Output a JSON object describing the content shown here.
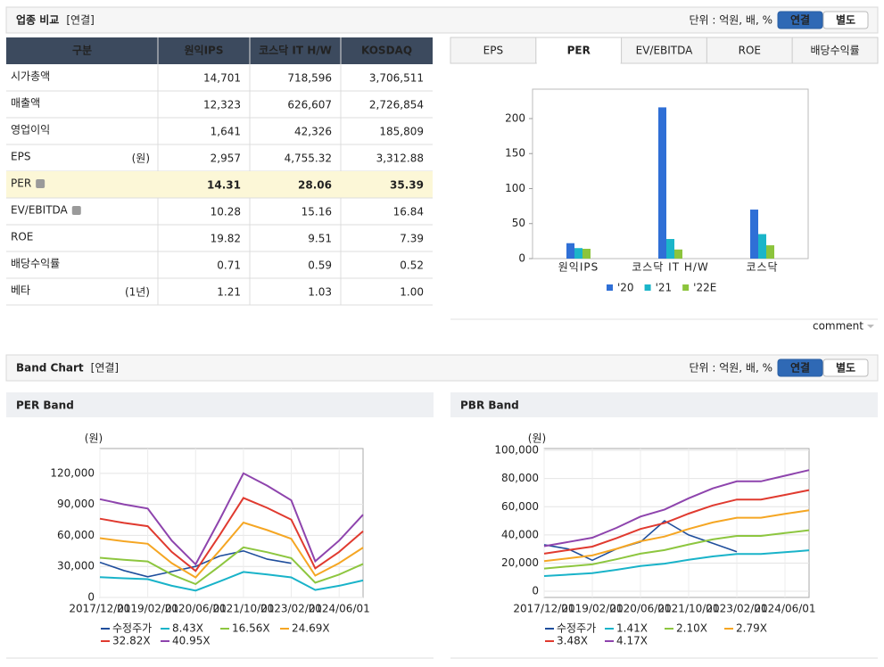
{
  "section1": {
    "title": "업종 비교",
    "tag": "[연결]",
    "unit": "단위 : 억원, 배, %",
    "buttons": [
      "연결",
      "별도"
    ],
    "selected_button": 0
  },
  "table": {
    "header": [
      "구분",
      "원익IPS",
      "코스닥 IT H/W",
      "KOSDAQ"
    ],
    "highlight_row": 4,
    "rows": [
      {
        "label": "시가총액",
        "cells": [
          "14,701",
          "718,596",
          "3,706,511"
        ]
      },
      {
        "label": "매출액",
        "cells": [
          "12,323",
          "626,607",
          "2,726,854"
        ]
      },
      {
        "label": "영업이익",
        "cells": [
          "1,641",
          "42,326",
          "185,809"
        ]
      },
      {
        "label": "EPS",
        "unit": "(원)",
        "cells": [
          "2,957",
          "4,755.32",
          "3,312.88"
        ]
      },
      {
        "label": "PER",
        "help": true,
        "cells": [
          "14.31",
          "28.06",
          "35.39"
        ]
      },
      {
        "label": "EV/EBITDA",
        "help": true,
        "cells": [
          "10.28",
          "15.16",
          "16.84"
        ]
      },
      {
        "label": "ROE",
        "cells": [
          "19.82",
          "9.51",
          "7.39"
        ]
      },
      {
        "label": "배당수익률",
        "cells": [
          "0.71",
          "0.59",
          "0.52"
        ]
      },
      {
        "label": "베타",
        "unit": "(1년)",
        "cells": [
          "1.21",
          "1.03",
          "1.00"
        ]
      }
    ]
  },
  "tabs": [
    "EPS",
    "PER",
    "EV/EBITDA",
    "ROE",
    "배당수익률"
  ],
  "selected_tab": 1,
  "comment": "comment",
  "section2": {
    "title": "Band Chart",
    "tag": "[연결]",
    "unit": "단위 : 억원, 배, %",
    "buttons": [
      "연결",
      "별도"
    ],
    "selected_button": 0
  },
  "chart_data": [
    {
      "type": "bar",
      "categories": [
        "원익IPS",
        "코스닥 IT H/W",
        "코스닥"
      ],
      "series": [
        {
          "name": "'20",
          "color": "#2f6fd6",
          "values": [
            22,
            216,
            70
          ]
        },
        {
          "name": "'21",
          "color": "#1bb5c9",
          "values": [
            15,
            28,
            35
          ]
        },
        {
          "name": "'22E",
          "color": "#8cc43c",
          "values": [
            14,
            13,
            19
          ]
        }
      ],
      "ylim": [
        0,
        242
      ],
      "yticks": [
        0,
        50,
        100,
        150,
        200
      ]
    },
    {
      "type": "line",
      "title": "PER Band",
      "y_label": "(원)",
      "categories": [
        "2017/12/01",
        null,
        "2019/02/01",
        null,
        "2020/06/01",
        null,
        "2021/10/01",
        null,
        "2023/02/01",
        null,
        "2024/06/01",
        null
      ],
      "ylim": [
        0,
        144000
      ],
      "yticks": [
        0,
        {
          "value": 30000,
          "label": "30,000"
        },
        {
          "value": 60000,
          "label": "60,000"
        },
        {
          "value": 90000,
          "label": "90,000"
        },
        {
          "value": 120000,
          "label": "120,000"
        }
      ],
      "series": [
        {
          "name": "수정주가",
          "color": "#1f4e9c",
          "values": [
            34000,
            26000,
            20000,
            25000,
            30000,
            40000,
            45000,
            37000,
            33000,
            null,
            null,
            null
          ]
        },
        {
          "name": "8.43X",
          "color": "#19b3c9",
          "values": [
            19600,
            18500,
            17700,
            11300,
            6600,
            15400,
            24700,
            22200,
            19400,
            7200,
            11300,
            16500
          ]
        },
        {
          "name": "16.56X",
          "color": "#8dc63f",
          "values": [
            38400,
            36400,
            34800,
            22200,
            12900,
            30300,
            48500,
            43700,
            38000,
            14200,
            22200,
            32400
          ]
        },
        {
          "name": "24.69X",
          "color": "#f5a623",
          "values": [
            57300,
            54300,
            51900,
            33200,
            19300,
            45200,
            72400,
            65100,
            56700,
            21100,
            33200,
            48200
          ]
        },
        {
          "name": "32.82X",
          "color": "#e03a2f",
          "values": [
            76100,
            72100,
            68900,
            44100,
            25600,
            60100,
            96200,
            86600,
            75300,
            28100,
            44100,
            64100
          ]
        },
        {
          "name": "40.95X",
          "color": "#8e44ad",
          "values": [
            95000,
            90000,
            86000,
            55000,
            32000,
            75000,
            120000,
            108000,
            94000,
            35000,
            55000,
            80000
          ]
        }
      ]
    },
    {
      "type": "line",
      "title": "PBR Band",
      "y_label": "(원)",
      "categories": [
        "2017/12/01",
        null,
        "2019/02/01",
        null,
        "2020/06/01",
        null,
        "2021/10/01",
        null,
        "2023/02/01",
        null,
        "2024/06/01",
        null
      ],
      "ylim": [
        -4400,
        101300
      ],
      "yticks": [
        0,
        {
          "value": 20000,
          "label": "20,000"
        },
        {
          "value": 40000,
          "label": "40,000"
        },
        {
          "value": 60000,
          "label": "60,000"
        },
        {
          "value": 80000,
          "label": "80,000"
        },
        {
          "value": 100000,
          "label": "100,000"
        }
      ],
      "series": [
        {
          "name": "수정주가",
          "color": "#1f4e9c",
          "values": [
            33000,
            30000,
            22000,
            30000,
            35000,
            50000,
            40000,
            34000,
            28000,
            null,
            null,
            null
          ]
        },
        {
          "name": "1.41X",
          "color": "#19b3c9",
          "values": [
            10800,
            11800,
            12800,
            15200,
            17900,
            19600,
            22300,
            24700,
            26400,
            26400,
            27700,
            29100
          ]
        },
        {
          "name": "2.10X",
          "color": "#8dc63f",
          "values": [
            16100,
            17600,
            19100,
            22700,
            26700,
            29200,
            33200,
            36800,
            39300,
            39300,
            41300,
            43300
          ]
        },
        {
          "name": "2.79X",
          "color": "#f5a623",
          "values": [
            21400,
            23400,
            25400,
            30100,
            35500,
            38800,
            44200,
            48800,
            52200,
            52200,
            54900,
            57500
          ]
        },
        {
          "name": "3.48X",
          "color": "#e03a2f",
          "values": [
            26700,
            29200,
            31700,
            37600,
            44200,
            48400,
            55100,
            60900,
            65100,
            65100,
            68400,
            71800
          ]
        },
        {
          "name": "4.17X",
          "color": "#8e44ad",
          "values": [
            32000,
            35000,
            38000,
            45000,
            53000,
            58000,
            66000,
            73000,
            78000,
            78000,
            82000,
            86000
          ]
        }
      ]
    }
  ]
}
